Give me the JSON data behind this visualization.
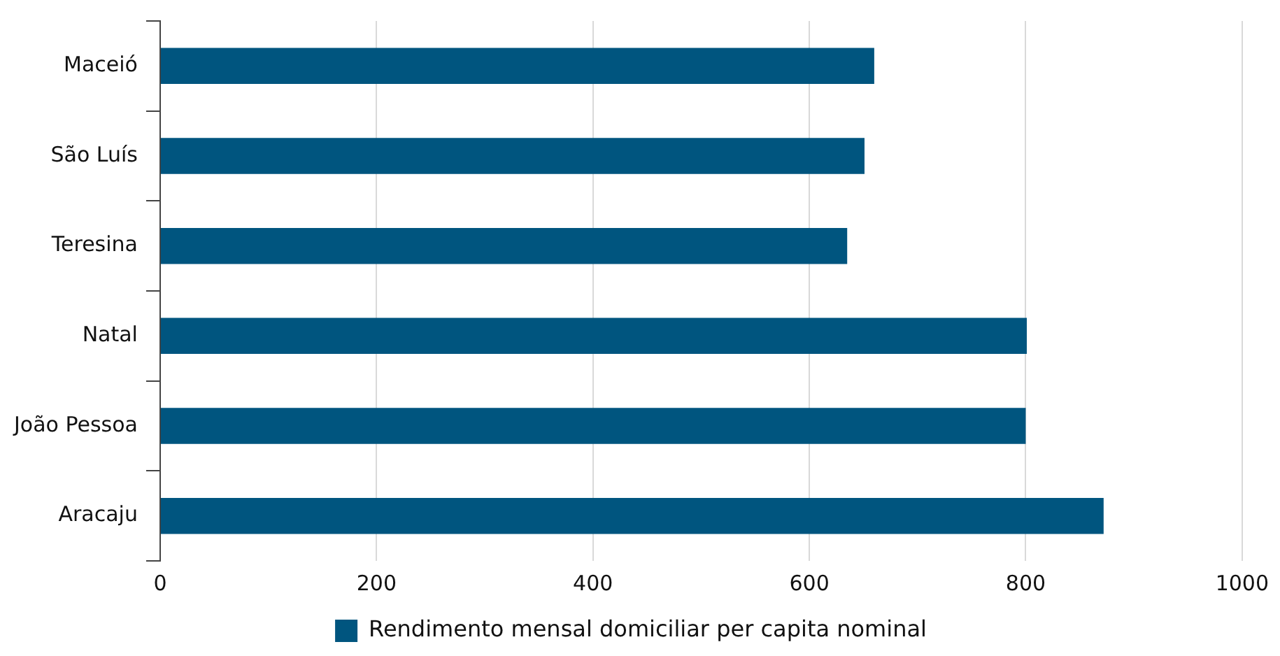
{
  "chart_data": {
    "type": "bar",
    "orientation": "horizontal",
    "categories": [
      "Maceió",
      "São Luís",
      "Teresina",
      "Natal",
      "João Pessoa",
      "Aracaju"
    ],
    "series": [
      {
        "name": "Rendimento mensal domiciliar per capita nominal",
        "color": "#00557f",
        "values": [
          660,
          651,
          635,
          801,
          800,
          872
        ]
      }
    ],
    "xlim": [
      0,
      1000
    ],
    "xticks": [
      0,
      200,
      400,
      600,
      800,
      1000
    ],
    "grid": "x",
    "legend": "bottom"
  }
}
